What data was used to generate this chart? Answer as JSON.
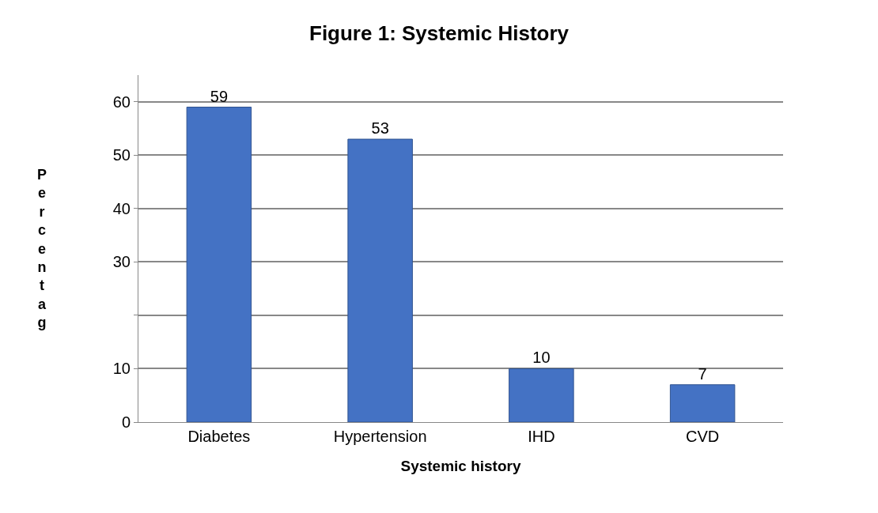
{
  "chart_data": {
    "type": "bar",
    "title": "Figure 1: Systemic History",
    "xlabel": "Systemic history",
    "ylabel": "Percentag",
    "categories": [
      "Diabetes",
      "Hypertension",
      "IHD",
      "CVD"
    ],
    "values": [
      59,
      53,
      10,
      7
    ],
    "color": "#4472c4",
    "data_labels": true,
    "ylim": [
      0,
      65
    ],
    "yticks": [
      0,
      10,
      {
        "value": 20,
        "label": null
      },
      30,
      40,
      50,
      60
    ],
    "grid": "y",
    "legend": false
  }
}
